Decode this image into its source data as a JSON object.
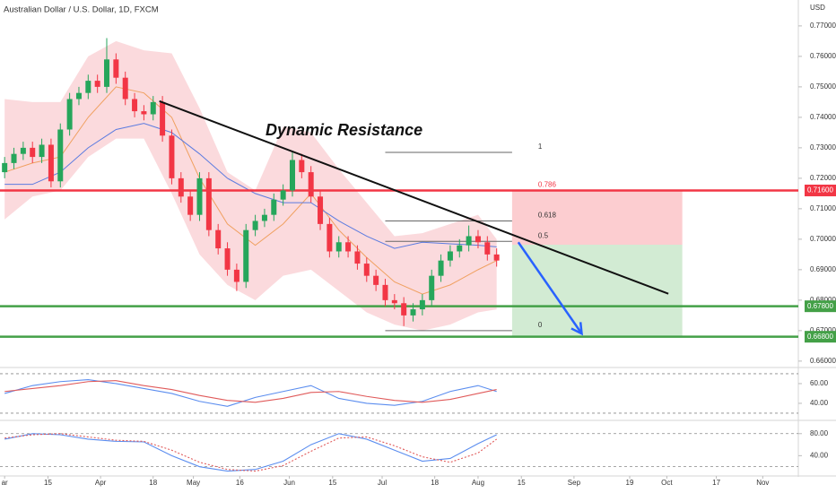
{
  "chart_data": {
    "type": "candlestick",
    "title": "Australian Dollar / U.S. Dollar, 1D, FXCM",
    "currency": "USD",
    "annotation": "Dynamic Resistance",
    "grid": false,
    "up_color": "#26a65b",
    "down_color": "#f23645",
    "xlim": [
      -1.5,
      256.5
    ],
    "xticks": [
      {
        "value": 0,
        "label": "ar"
      },
      {
        "value": 14,
        "label": "15"
      },
      {
        "value": 31,
        "label": "Apr"
      },
      {
        "value": 48,
        "label": "18"
      },
      {
        "value": 61,
        "label": "May"
      },
      {
        "value": 76,
        "label": "16"
      },
      {
        "value": 92,
        "label": "Jun"
      },
      {
        "value": 106,
        "label": "15"
      },
      {
        "value": 122,
        "label": "Jul"
      },
      {
        "value": 139,
        "label": "18"
      },
      {
        "value": 153,
        "label": "Aug"
      },
      {
        "value": 167,
        "label": "15"
      },
      {
        "value": 184,
        "label": "Sep"
      },
      {
        "value": 202,
        "label": "19"
      },
      {
        "value": 214,
        "label": "Oct"
      },
      {
        "value": 230,
        "label": "17"
      },
      {
        "value": 245,
        "label": "Nov"
      }
    ],
    "ylim": [
      0.6579,
      0.7785
    ],
    "yticks": [
      {
        "value": 0.77,
        "label": "0.77000"
      },
      {
        "value": 0.76,
        "label": "0.76000"
      },
      {
        "value": 0.75,
        "label": "0.75000"
      },
      {
        "value": 0.74,
        "label": "0.74000"
      },
      {
        "value": 0.73,
        "label": "0.73000"
      },
      {
        "value": 0.72,
        "label": "0.72000"
      },
      {
        "value": 0.71,
        "label": "0.71000"
      },
      {
        "value": 0.7,
        "label": "0.70000"
      },
      {
        "value": 0.69,
        "label": "0.69000"
      },
      {
        "value": 0.68,
        "label": "0.68000"
      },
      {
        "value": 0.67,
        "label": "0.67000"
      },
      {
        "value": 0.66,
        "label": "0.66000"
      }
    ],
    "x": [
      0,
      3,
      6,
      9,
      12,
      15,
      18,
      21,
      24,
      27,
      30,
      33,
      36,
      39,
      42,
      45,
      48,
      51,
      54,
      57,
      60,
      63,
      66,
      69,
      72,
      75,
      78,
      81,
      84,
      87,
      90,
      93,
      96,
      99,
      102,
      105,
      108,
      111,
      114,
      117,
      120,
      123,
      126,
      129,
      132,
      135,
      138,
      141,
      144,
      147,
      150,
      153,
      156,
      159
    ],
    "open": [
      0.722,
      0.725,
      0.728,
      0.73,
      0.727,
      0.731,
      0.719,
      0.736,
      0.746,
      0.748,
      0.752,
      0.75,
      0.759,
      0.753,
      0.746,
      0.742,
      0.741,
      0.745,
      0.734,
      0.72,
      0.714,
      0.708,
      0.72,
      0.703,
      0.697,
      0.69,
      0.686,
      0.703,
      0.706,
      0.708,
      0.713,
      0.716,
      0.726,
      0.722,
      0.714,
      0.705,
      0.696,
      0.699,
      0.696,
      0.692,
      0.688,
      0.685,
      0.68,
      0.679,
      0.675,
      0.677,
      0.68,
      0.688,
      0.693,
      0.696,
      0.698,
      0.701,
      0.699,
      0.695
    ],
    "high": [
      0.727,
      0.73,
      0.732,
      0.732,
      0.733,
      0.733,
      0.738,
      0.748,
      0.75,
      0.754,
      0.754,
      0.766,
      0.761,
      0.755,
      0.748,
      0.744,
      0.747,
      0.747,
      0.736,
      0.722,
      0.716,
      0.722,
      0.722,
      0.705,
      0.699,
      0.692,
      0.705,
      0.708,
      0.71,
      0.715,
      0.718,
      0.729,
      0.728,
      0.724,
      0.716,
      0.707,
      0.701,
      0.701,
      0.698,
      0.694,
      0.69,
      0.687,
      0.682,
      0.681,
      0.679,
      0.682,
      0.69,
      0.695,
      0.698,
      0.7,
      0.7045,
      0.703,
      0.701,
      0.697
    ],
    "low": [
      0.72,
      0.723,
      0.726,
      0.725,
      0.725,
      0.717,
      0.717,
      0.734,
      0.744,
      0.746,
      0.748,
      0.748,
      0.751,
      0.744,
      0.74,
      0.739,
      0.739,
      0.732,
      0.718,
      0.712,
      0.706,
      0.706,
      0.701,
      0.695,
      0.688,
      0.683,
      0.684,
      0.701,
      0.704,
      0.706,
      0.711,
      0.714,
      0.72,
      0.712,
      0.703,
      0.694,
      0.694,
      0.694,
      0.69,
      0.686,
      0.683,
      0.678,
      0.677,
      0.6715,
      0.673,
      0.675,
      0.678,
      0.686,
      0.691,
      0.694,
      0.696,
      0.697,
      0.693,
      0.691
    ],
    "close": [
      0.725,
      0.728,
      0.73,
      0.727,
      0.731,
      0.719,
      0.736,
      0.746,
      0.748,
      0.752,
      0.75,
      0.759,
      0.753,
      0.746,
      0.742,
      0.741,
      0.745,
      0.734,
      0.72,
      0.714,
      0.708,
      0.72,
      0.703,
      0.697,
      0.69,
      0.686,
      0.703,
      0.706,
      0.708,
      0.713,
      0.716,
      0.726,
      0.722,
      0.714,
      0.705,
      0.696,
      0.699,
      0.696,
      0.692,
      0.688,
      0.685,
      0.68,
      0.679,
      0.675,
      0.677,
      0.68,
      0.688,
      0.693,
      0.696,
      0.698,
      0.701,
      0.699,
      0.695,
      0.693
    ],
    "overlays": {
      "x": [
        0,
        9,
        18,
        27,
        36,
        45,
        54,
        63,
        72,
        81,
        90,
        99,
        108,
        117,
        126,
        135,
        144,
        153,
        159
      ],
      "upper": [
        0.746,
        0.745,
        0.745,
        0.76,
        0.765,
        0.762,
        0.761,
        0.743,
        0.722,
        0.716,
        0.737,
        0.735,
        0.723,
        0.712,
        0.701,
        0.702,
        0.705,
        0.708,
        0.7
      ],
      "lower": [
        0.7065,
        0.714,
        0.716,
        0.727,
        0.733,
        0.733,
        0.715,
        0.695,
        0.685,
        0.68,
        0.688,
        0.69,
        0.683,
        0.676,
        0.672,
        0.67,
        0.672,
        0.676,
        0.677
      ],
      "ma_fast": [
        0.722,
        0.725,
        0.727,
        0.74,
        0.75,
        0.748,
        0.74,
        0.72,
        0.705,
        0.698,
        0.705,
        0.715,
        0.703,
        0.694,
        0.686,
        0.682,
        0.685,
        0.69,
        0.693
      ],
      "ma_slow": [
        0.718,
        0.718,
        0.722,
        0.73,
        0.736,
        0.738,
        0.735,
        0.728,
        0.72,
        0.715,
        0.712,
        0.712,
        0.706,
        0.701,
        0.697,
        0.699,
        0.6985,
        0.698,
        0.6975
      ],
      "band_color": "#f9cdd1",
      "fast_color": "#f0a060",
      "slow_color": "#5b7be0"
    },
    "trendline": {
      "x": [
        50,
        214.5
      ],
      "values": [
        0.7453,
        0.6821
      ],
      "color": "#111111"
    },
    "levels": [
      {
        "value": 0.716,
        "label": "0.71600",
        "color": "#f23645"
      },
      {
        "value": 0.678,
        "label": "0.67800",
        "color": "#43a047"
      },
      {
        "value": 0.668,
        "label": "0.66800",
        "color": "#43a047"
      }
    ],
    "fib": {
      "x": [
        123,
        164
      ],
      "levels": [
        {
          "label": "1",
          "value": 0.7285
        },
        {
          "label": "0.786",
          "value": 0.716
        },
        {
          "label": "0.618",
          "value": 0.706
        },
        {
          "label": "0.5",
          "value": 0.6993
        },
        {
          "label": "0",
          "value": 0.67
        }
      ]
    },
    "risk_box": {
      "x": [
        164,
        219
      ],
      "values": [
        0.716,
        0.6982
      ],
      "color": "#f23645"
    },
    "reward_box": {
      "x": [
        164,
        219
      ],
      "values": [
        0.6982,
        0.6682
      ],
      "color": "#4caf50"
    },
    "arrow": {
      "x": [
        166,
        186.5
      ],
      "values": [
        0.699,
        0.669
      ],
      "color": "#2962ff"
    },
    "indicators": [
      {
        "ylim": [
          23.6,
          74.5
        ],
        "yticks": [
          {
            "value": 60,
            "label": "60.00"
          },
          {
            "value": 40,
            "label": "40.00"
          }
        ],
        "levels": [
          70,
          30
        ],
        "x": [
          0,
          9,
          18,
          27,
          36,
          45,
          54,
          63,
          72,
          81,
          90,
          99,
          108,
          117,
          126,
          135,
          144,
          153,
          159
        ],
        "series": [
          {
            "color": "#5b8def",
            "dotted": false,
            "values": [
              50,
              58,
              62,
              64,
              60,
              55,
              50,
              42,
              37,
              46,
              52,
              58,
              45,
              40,
              38,
              42,
              52,
              58,
              52
            ]
          },
          {
            "color": "#e05a5a",
            "dotted": false,
            "values": [
              52,
              55,
              58,
              62,
              63,
              58,
              54,
              48,
              43,
              41,
              45,
              51,
              52,
              47,
              43,
              41,
              44,
              50,
              54
            ]
          }
        ]
      },
      {
        "ylim": [
          4.8,
          100.8
        ],
        "yticks": [
          {
            "value": 80,
            "label": "80.00"
          },
          {
            "value": 40,
            "label": "40.00"
          }
        ],
        "levels": [
          80,
          20
        ],
        "x": [
          0,
          9,
          18,
          27,
          36,
          45,
          54,
          63,
          72,
          81,
          90,
          99,
          108,
          117,
          126,
          135,
          144,
          153,
          159
        ],
        "series": [
          {
            "color": "#5b8def",
            "dotted": false,
            "values": [
              70,
              80,
              78,
              70,
              66,
              65,
              40,
              20,
              12,
              15,
              30,
              60,
              80,
              70,
              50,
              30,
              35,
              62,
              78
            ]
          },
          {
            "color": "#e05a5a",
            "dotted": true,
            "values": [
              72,
              78,
              80,
              74,
              68,
              66,
              50,
              28,
              15,
              12,
              22,
              48,
              72,
              74,
              58,
              38,
              28,
              45,
              70
            ]
          }
        ]
      }
    ]
  }
}
